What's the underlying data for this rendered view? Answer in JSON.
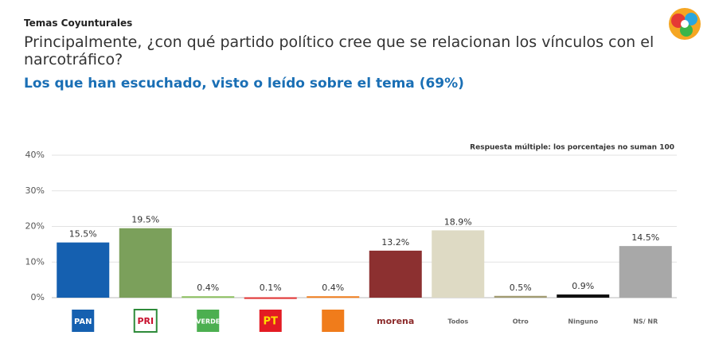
{
  "chart_data": {
    "type": "bar",
    "kicker": "Temas Coyunturales",
    "title": "Principalmente, ¿con qué partido político cree que se relacionan los vínculos con el narcotráfico?",
    "subtitle": "Los que han escuchado, visto o leído sobre el tema (69%)",
    "note": "Respuesta múltiple: los porcentajes no suman 100",
    "categories": [
      "PAN",
      "PRI",
      "VERDE",
      "PT",
      null,
      "morena",
      "Todos",
      "Otro",
      "Ninguno",
      "NS/ NR"
    ],
    "values": [
      15.5,
      19.5,
      0.4,
      0.1,
      0.4,
      13.2,
      18.9,
      0.5,
      0.9,
      14.5
    ],
    "value_labels": [
      "15.5%",
      "19.5%",
      "0.4%",
      "0.1%",
      "0.4%",
      "13.2%",
      "18.9%",
      "0.5%",
      "0.9%",
      "14.5%"
    ],
    "colors": [
      "#1560b0",
      "#7ba05b",
      "#8cc060",
      "#e03030",
      "#f08020",
      "#8c3030",
      "#dedac4",
      "#a09a70",
      "#111111",
      "#a8a8a8"
    ],
    "ylim": [
      0,
      40
    ],
    "yticks": [
      {
        "value": 0,
        "label": "0%"
      },
      {
        "value": 10,
        "label": "10%"
      },
      {
        "value": 20,
        "label": "20%"
      },
      {
        "value": 30,
        "label": "30%"
      },
      {
        "value": 40,
        "label": "40%"
      }
    ],
    "grid": true
  }
}
